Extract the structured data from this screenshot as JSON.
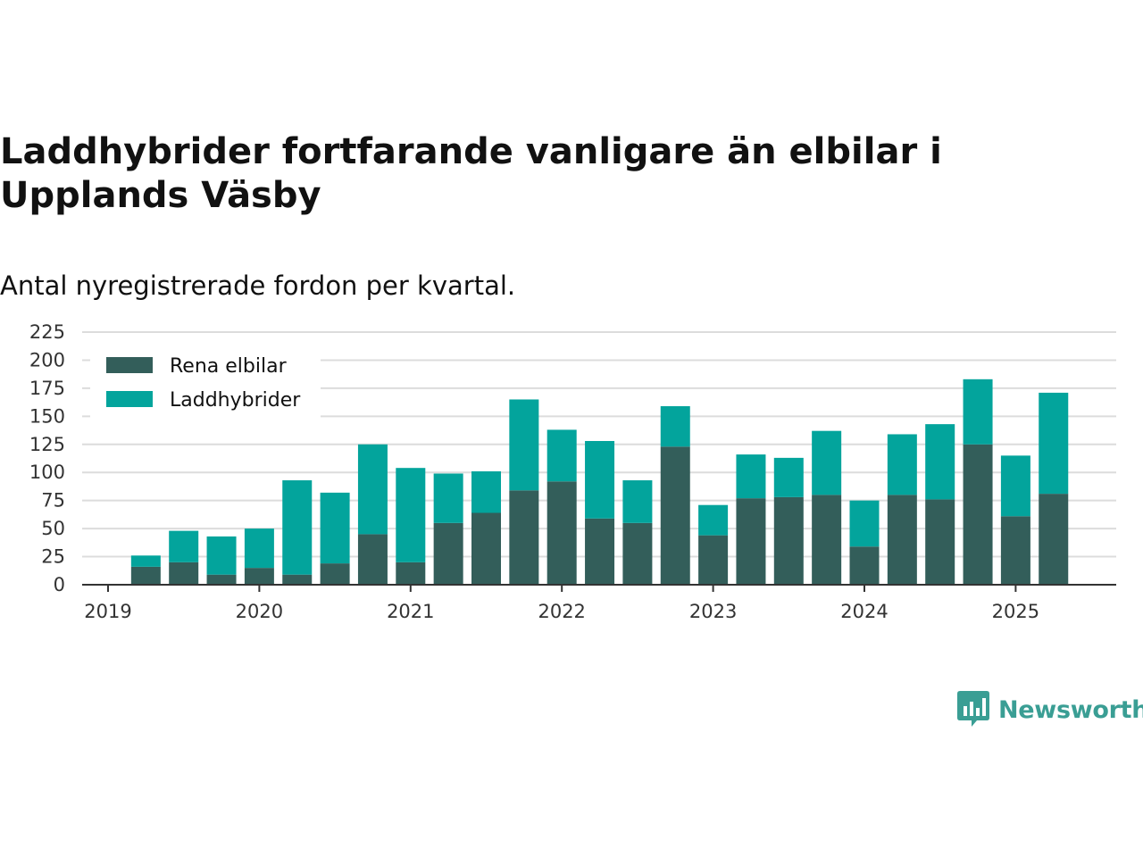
{
  "header": {
    "title": "Laddhybrider fortfarande vanligare än elbilar i Upplands Väsby",
    "subtitle": "Antal nyregistrerade fordon per kvartal."
  },
  "brand": {
    "name": "Newsworthy",
    "icon": "newsworthy-logo-icon",
    "color": "#3a9e94"
  },
  "chart_data": {
    "type": "bar",
    "stacked": true,
    "title": "Laddhybrider fortfarande vanligare än elbilar i Upplands Väsby",
    "subtitle": "Antal nyregistrerade fordon per kvartal.",
    "xlabel": "",
    "ylabel": "",
    "ylim": [
      0,
      225
    ],
    "yticks": [
      0,
      25,
      50,
      75,
      100,
      125,
      150,
      175,
      200,
      225
    ],
    "xticks": [
      "2019",
      "2020",
      "2021",
      "2022",
      "2023",
      "2024",
      "2025"
    ],
    "grid": true,
    "legend_position": "top-left",
    "categories": [
      "2019 Q1",
      "2019 Q2",
      "2019 Q3",
      "2019 Q4",
      "2020 Q1",
      "2020 Q2",
      "2020 Q3",
      "2020 Q4",
      "2021 Q1",
      "2021 Q2",
      "2021 Q3",
      "2021 Q4",
      "2022 Q1",
      "2022 Q2",
      "2022 Q3",
      "2022 Q4",
      "2023 Q1",
      "2023 Q2",
      "2023 Q3",
      "2023 Q4",
      "2024 Q1",
      "2024 Q2",
      "2024 Q3",
      "2024 Q4",
      "2025 Q1",
      "2025 Q2"
    ],
    "series": [
      {
        "name": "Rena elbilar",
        "color": "#335e5a",
        "values": [
          16,
          20,
          9,
          15,
          9,
          19,
          45,
          20,
          55,
          64,
          84,
          92,
          59,
          55,
          123,
          44,
          77,
          78,
          80,
          34,
          80,
          76,
          125,
          61,
          81,
          0
        ]
      },
      {
        "name": "Laddhybrider",
        "color": "#03a49c",
        "values": [
          10,
          28,
          34,
          35,
          84,
          63,
          80,
          84,
          44,
          37,
          81,
          46,
          69,
          38,
          36,
          27,
          39,
          35,
          57,
          41,
          54,
          67,
          58,
          54,
          90,
          0
        ]
      }
    ]
  }
}
